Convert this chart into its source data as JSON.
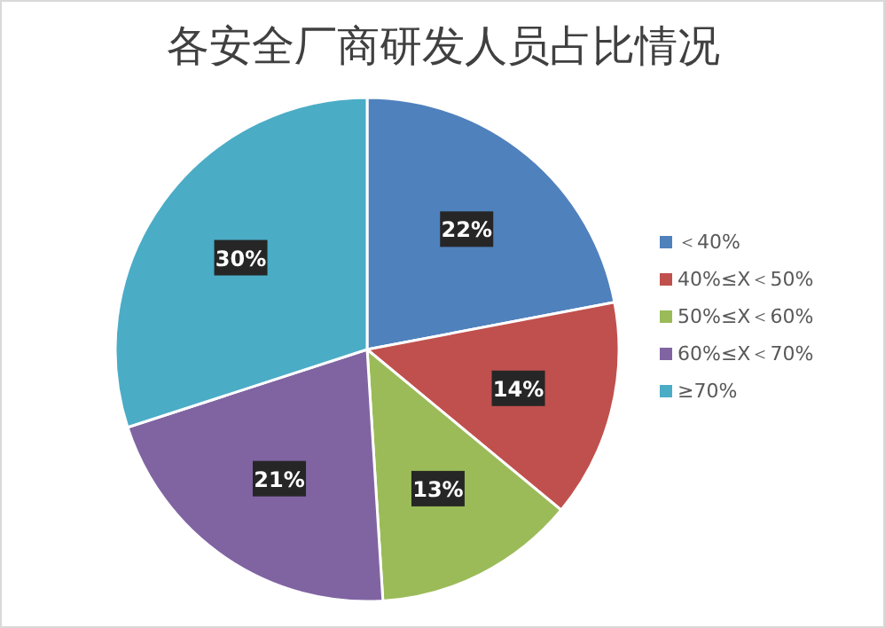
{
  "chart_data": {
    "type": "pie",
    "title": "各安全厂商研发人员占比情况",
    "categories": [
      "＜40%",
      "40%≤X＜50%",
      "50%≤X＜60%",
      "60%≤X＜70%",
      "≥70%"
    ],
    "values": [
      22,
      14,
      13,
      21,
      30
    ],
    "colors": [
      "#4f81bd",
      "#c0504d",
      "#9bbb59",
      "#8064a2",
      "#4bacc6"
    ],
    "value_labels": [
      "22%",
      "14%",
      "13%",
      "21%",
      "30%"
    ],
    "legend": "right"
  }
}
